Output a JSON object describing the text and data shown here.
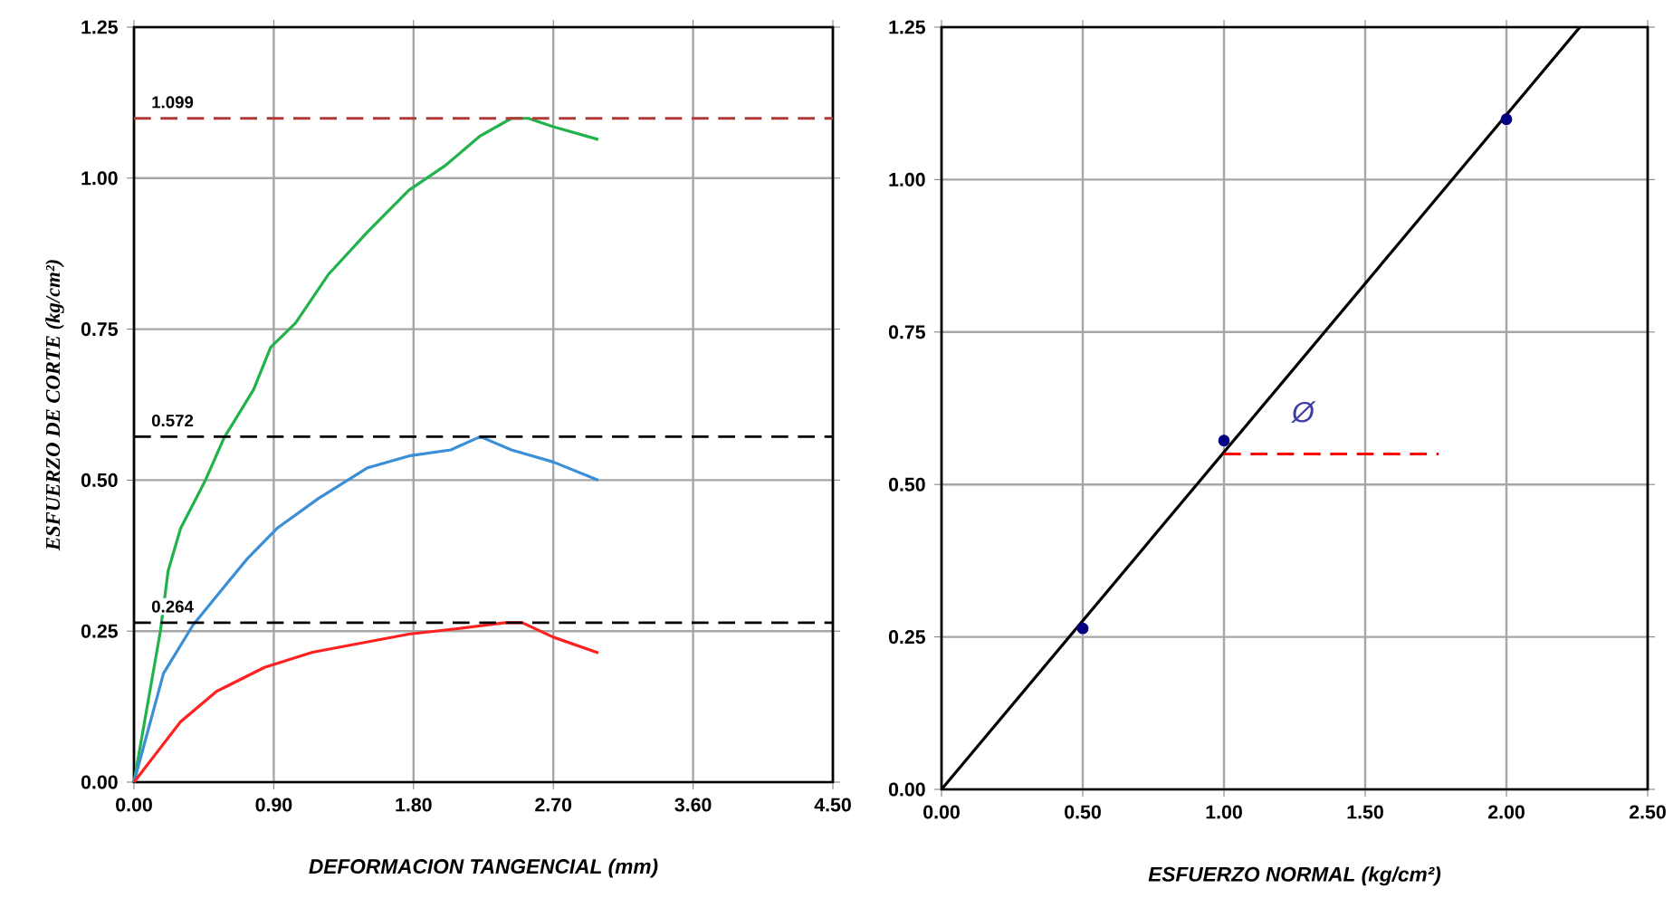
{
  "chart_data": [
    {
      "type": "line",
      "xlabel": "DEFORMACION TANGENCIAL (mm)",
      "ylabel": "ESFUERZO DE CORTE (kg/cm²)",
      "xlim": [
        0,
        4.5
      ],
      "ylim": [
        0,
        1.25
      ],
      "xticks": [
        {
          "value": 0,
          "label": "0.00"
        },
        {
          "value": 0.9,
          "label": "0.90"
        },
        {
          "value": 1.8,
          "label": "1.80"
        },
        {
          "value": 2.7,
          "label": "2.70"
        },
        {
          "value": 3.6,
          "label": "3.60"
        },
        {
          "value": 4.5,
          "label": "4.50"
        }
      ],
      "yticks": [
        {
          "value": 0,
          "label": "0.00"
        },
        {
          "value": 0.25,
          "label": "0.25"
        },
        {
          "value": 0.5,
          "label": "0.50"
        },
        {
          "value": 0.75,
          "label": "0.75"
        },
        {
          "value": 1,
          "label": "1.00"
        },
        {
          "value": 1.25,
          "label": "1.25"
        }
      ],
      "grid": true,
      "ref_lines": [
        {
          "axis": "y",
          "value": 1.099,
          "label": "1.099",
          "color": "#b03a3a",
          "line_style": "dashed"
        },
        {
          "axis": "y",
          "value": 0.572,
          "label": "0.572",
          "color": "#000000",
          "line_style": "dashed"
        },
        {
          "axis": "y",
          "value": 0.264,
          "label": "0.264",
          "color": "#000000",
          "line_style": "dashed"
        }
      ],
      "series": [
        {
          "color": "#22b24c",
          "x": [
            0,
            0.17,
            0.22,
            0.3,
            0.46,
            0.58,
            0.77,
            0.88,
            1.04,
            1.25,
            1.5,
            1.77,
            2.0,
            2.23,
            2.43,
            2.54,
            2.7,
            2.99
          ],
          "values": [
            0,
            0.25,
            0.35,
            0.42,
            0.5,
            0.57,
            0.65,
            0.72,
            0.76,
            0.84,
            0.91,
            0.98,
            1.02,
            1.07,
            1.099,
            1.099,
            1.085,
            1.064
          ]
        },
        {
          "color": "#3a8fd6",
          "x": [
            0,
            0.19,
            0.38,
            0.57,
            0.73,
            0.92,
            1.19,
            1.5,
            1.77,
            2.04,
            2.23,
            2.43,
            2.7,
            2.99
          ],
          "values": [
            0,
            0.18,
            0.26,
            0.32,
            0.37,
            0.42,
            0.47,
            0.52,
            0.54,
            0.55,
            0.572,
            0.55,
            0.53,
            0.5
          ]
        },
        {
          "color": "#ff2020",
          "x": [
            0,
            0.15,
            0.3,
            0.53,
            0.84,
            1.15,
            1.46,
            1.77,
            2.08,
            2.39,
            2.5,
            2.7,
            2.99
          ],
          "values": [
            0,
            0.05,
            0.1,
            0.15,
            0.19,
            0.215,
            0.23,
            0.245,
            0.254,
            0.264,
            0.264,
            0.24,
            0.214
          ]
        }
      ]
    },
    {
      "type": "scatter",
      "xlabel": "ESFUERZO NORMAL (kg/cm²)",
      "xlim": [
        0,
        2.5
      ],
      "ylim": [
        0,
        1.25
      ],
      "xticks": [
        {
          "value": 0,
          "label": "0.00"
        },
        {
          "value": 0.5,
          "label": "0.50"
        },
        {
          "value": 1,
          "label": "1.00"
        },
        {
          "value": 1.5,
          "label": "1.50"
        },
        {
          "value": 2,
          "label": "2.00"
        },
        {
          "value": 2.5,
          "label": "2.50"
        }
      ],
      "yticks": [
        {
          "value": 0,
          "label": "0.00"
        },
        {
          "value": 0.25,
          "label": "0.25"
        },
        {
          "value": 0.5,
          "label": "0.50"
        },
        {
          "value": 0.75,
          "label": "0.75"
        },
        {
          "value": 1,
          "label": "1.00"
        },
        {
          "value": 1.25,
          "label": "1.25"
        }
      ],
      "grid": true,
      "annotations": [
        "Ø"
      ],
      "series": [
        {
          "type": "scatter",
          "marker": "circle",
          "color": "#000080",
          "x": [
            0.5,
            1.0,
            2.0
          ],
          "values": [
            0.264,
            0.572,
            1.099
          ]
        },
        {
          "type": "line",
          "color": "#000000",
          "x": [
            0,
            2.26
          ],
          "values": [
            0,
            1.25
          ]
        },
        {
          "type": "line",
          "color": "#ff0000",
          "line_style": "dashed",
          "x": [
            1.0,
            1.76
          ],
          "values": [
            0.55,
            0.55
          ]
        }
      ]
    }
  ]
}
